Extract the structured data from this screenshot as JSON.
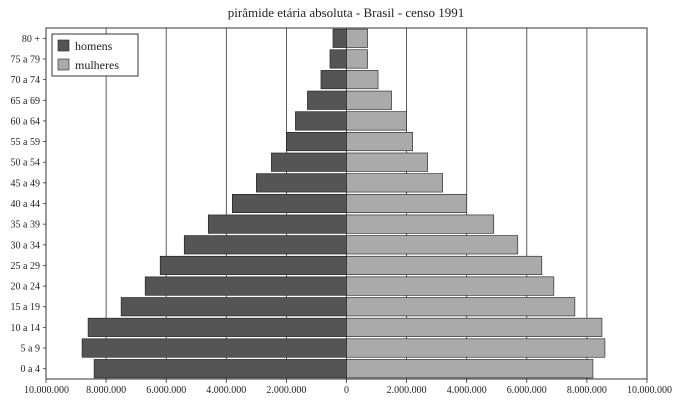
{
  "chart_data": {
    "type": "bar",
    "orientation": "horizontal",
    "diverging": true,
    "title": "pirâmide etária absoluta - Brasil - censo 1991",
    "xlabel": "",
    "ylabel": "",
    "categories": [
      "0 a 4",
      "5 a 9",
      "10 a 14",
      "15 a 19",
      "20 a 24",
      "25 a 29",
      "30 a 34",
      "35 a 39",
      "40 a 44",
      "45 a 49",
      "50 a 54",
      "55 a 59",
      "60 a 64",
      "65 a 69",
      "70 a 74",
      "75 a 79",
      "80 +"
    ],
    "series": [
      {
        "name": "homens",
        "color": "#555555",
        "side": "left",
        "values": [
          8400000,
          8800000,
          8600000,
          7500000,
          6700000,
          6200000,
          5400000,
          4600000,
          3800000,
          3000000,
          2500000,
          2000000,
          1700000,
          1300000,
          850000,
          550000,
          450000
        ]
      },
      {
        "name": "mulheres",
        "color": "#aaaaaa",
        "side": "right",
        "values": [
          8200000,
          8600000,
          8500000,
          7600000,
          6900000,
          6500000,
          5700000,
          4900000,
          4000000,
          3200000,
          2700000,
          2200000,
          2000000,
          1500000,
          1050000,
          700000,
          700000
        ]
      }
    ],
    "xlim": [
      -10000000,
      10000000
    ],
    "xticks": [
      -10000000,
      -8000000,
      -6000000,
      -4000000,
      -2000000,
      0,
      2000000,
      4000000,
      6000000,
      8000000,
      10000000
    ],
    "xtick_labels": [
      "10.000.000",
      "8.000.000",
      "6.000.000",
      "4.000.000",
      "2.000.000",
      "0",
      "2.000.000",
      "4.000.000",
      "6.000.000",
      "8.000.000",
      "10.000.000"
    ],
    "grid": {
      "vertical": true,
      "horizontal": false
    },
    "legend_position": "top-left"
  }
}
